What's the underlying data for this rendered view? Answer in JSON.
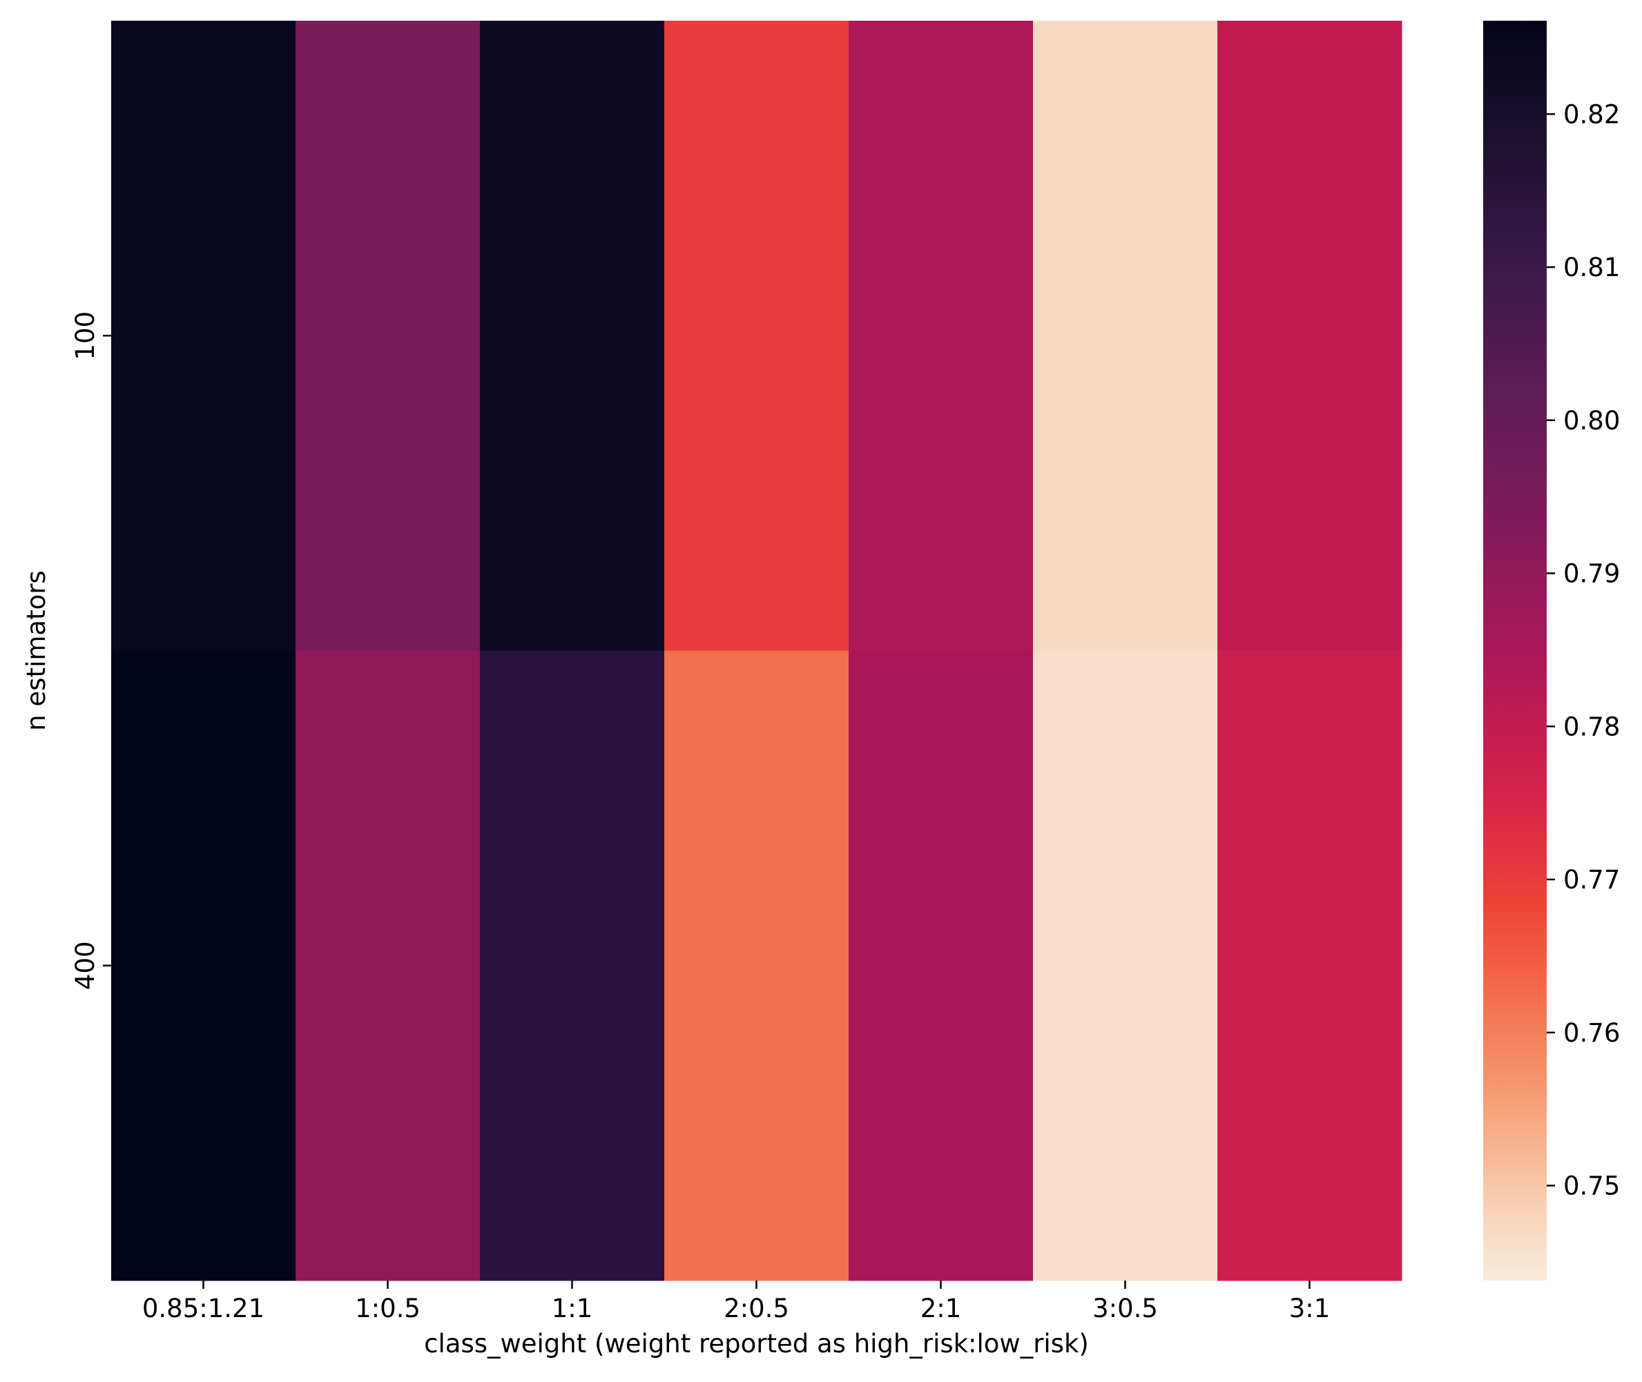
{
  "chart_data": {
    "type": "heatmap",
    "title": "",
    "xlabel": "class_weight (weight reported as high_risk:low_risk)",
    "ylabel": "n estimators",
    "x_categories": [
      "0.85:1.21",
      "1:0.5",
      "1:1",
      "2:0.5",
      "2:1",
      "3:0.5",
      "3:1"
    ],
    "y_categories": [
      "100",
      "400"
    ],
    "values": [
      [
        0.824,
        0.795,
        0.822,
        0.77,
        0.784,
        0.747,
        0.78
      ],
      [
        0.826,
        0.79,
        0.815,
        0.762,
        0.785,
        0.746,
        0.778
      ]
    ],
    "colormap": "rocket_r",
    "colorbar": {
      "range": [
        0.7438,
        0.8261
      ],
      "ticks": [
        0.75,
        0.76,
        0.77,
        0.78,
        0.79,
        0.8,
        0.81,
        0.82
      ],
      "tick_labels": [
        "0.75",
        "0.76",
        "0.77",
        "0.78",
        "0.79",
        "0.80",
        "0.81",
        "0.82"
      ]
    },
    "grid": false
  }
}
